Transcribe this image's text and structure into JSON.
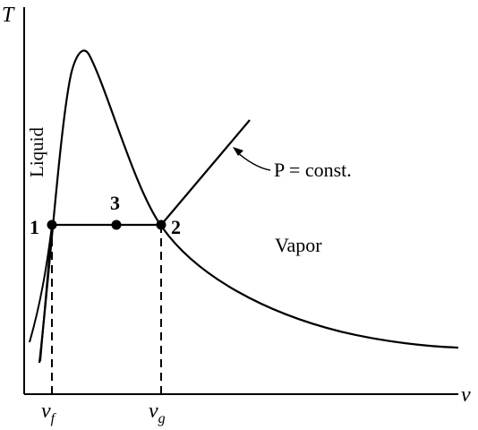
{
  "axes": {
    "y_label": "T",
    "x_label": "v"
  },
  "regions": {
    "liquid": "Liquid",
    "vapor": "Vapor"
  },
  "isobar_label": "P = const.",
  "points": {
    "p1": "1",
    "p2": "2",
    "p3": "3"
  },
  "ticks": {
    "vf": {
      "base": "v",
      "sub": "f"
    },
    "vg": {
      "base": "v",
      "sub": "g"
    }
  }
}
